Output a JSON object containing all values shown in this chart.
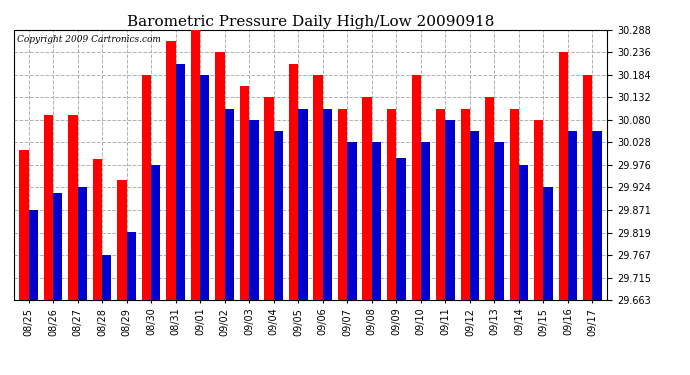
{
  "title": "Barometric Pressure Daily High/Low 20090918",
  "copyright": "Copyright 2009 Cartronics.com",
  "categories": [
    "08/25",
    "08/26",
    "08/27",
    "08/28",
    "08/29",
    "08/30",
    "08/31",
    "09/01",
    "09/02",
    "09/03",
    "09/04",
    "09/05",
    "09/06",
    "09/07",
    "09/08",
    "09/09",
    "09/10",
    "09/11",
    "09/12",
    "09/13",
    "09/14",
    "09/15",
    "09/16",
    "09/17"
  ],
  "highs": [
    30.01,
    30.092,
    30.092,
    29.99,
    29.94,
    30.184,
    30.262,
    30.3,
    30.236,
    30.158,
    30.132,
    30.21,
    30.184,
    30.106,
    30.132,
    30.106,
    30.184,
    30.106,
    30.106,
    30.132,
    30.106,
    30.08,
    30.236,
    30.184
  ],
  "lows": [
    29.871,
    29.91,
    29.924,
    29.767,
    29.82,
    29.976,
    30.21,
    30.184,
    30.106,
    30.08,
    30.054,
    30.106,
    30.106,
    30.028,
    30.028,
    29.992,
    30.028,
    30.08,
    30.054,
    30.028,
    29.976,
    29.924,
    30.054,
    30.054
  ],
  "ymin": 29.663,
  "ymax": 30.288,
  "yticks": [
    29.663,
    29.715,
    29.767,
    29.819,
    29.871,
    29.924,
    29.976,
    30.028,
    30.08,
    30.132,
    30.184,
    30.236,
    30.288
  ],
  "bar_width": 0.38,
  "high_color": "#ff0000",
  "low_color": "#0000cc",
  "bg_color": "#ffffff",
  "grid_color": "#b0b0b0",
  "title_fontsize": 11,
  "tick_fontsize": 7,
  "copyright_fontsize": 6.5
}
